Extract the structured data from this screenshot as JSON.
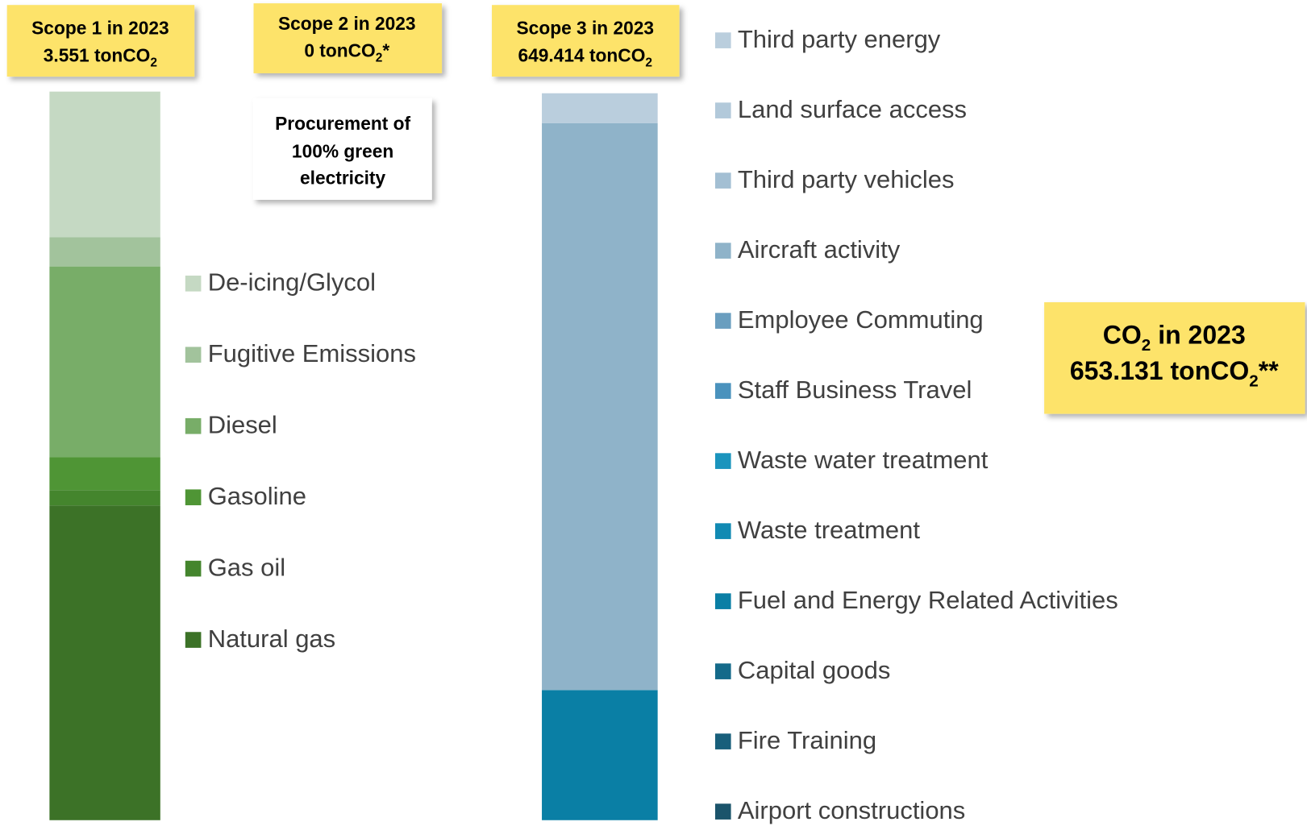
{
  "scope1_box": {
    "line1": "Scope 1  in 2023",
    "line2": "3.551 tonCO",
    "line2_sub": "2"
  },
  "scope2_box": {
    "line1": "Scope 2  in 2023",
    "line2": "0 tonCO",
    "line2_sub": "2",
    "line2_suffix": "*"
  },
  "scope3_box": {
    "line1": "Scope 3  in 2023",
    "line2": "649.414 tonCO",
    "line2_sub": "2"
  },
  "scope2_note": [
    "Procurement of",
    "100% green",
    "electricity"
  ],
  "total_box": {
    "line1": "CO",
    "line1_sub": "2",
    "line1_suffix": " in 2023",
    "line2": "653.131 tonCO",
    "line2_sub": "2",
    "line2_suffix": "**"
  },
  "chart_data": [
    {
      "type": "stacked_bar",
      "series": [
        {
          "name": "De-icing/Glycol",
          "color": "#c5d9c3",
          "values": [
            20.0
          ]
        },
        {
          "name": "Fugitive Emissions",
          "color": "#a2c39c",
          "values": [
            4.0
          ]
        },
        {
          "name": "Diesel",
          "color": "#78ad68",
          "values": [
            26.2
          ]
        },
        {
          "name": "Gasoline",
          "color": "#4f9535",
          "values": [
            4.5
          ]
        },
        {
          "name": "Gas oil",
          "color": "#44852d",
          "values": [
            2.1
          ]
        },
        {
          "name": "Natural gas",
          "color": "#3c7227",
          "values": [
            43.2
          ]
        }
      ]
    },
    {
      "type": "stacked_bar",
      "series": [
        {
          "name": "Third party energy",
          "color": "#bacedd",
          "values": [
            4.1
          ]
        },
        {
          "name": "Land surface access",
          "color": "#b2c9da",
          "values": [
            0
          ]
        },
        {
          "name": "Third party vehicles",
          "color": "#a3bfd3",
          "values": [
            0
          ]
        },
        {
          "name": "Aircraft activity",
          "color": "#8fb3c9",
          "values": [
            78.0
          ]
        },
        {
          "name": "Employee Commuting",
          "color": "#6a9ebf",
          "values": [
            0
          ]
        },
        {
          "name": "Staff Business Travel",
          "color": "#4a92bd",
          "values": [
            0
          ]
        },
        {
          "name": "Waste water treatment",
          "color": "#1a94bd",
          "values": [
            0
          ]
        },
        {
          "name": "Waste treatment",
          "color": "#118ab3",
          "values": [
            0
          ]
        },
        {
          "name": "Fuel and Energy Related Activities",
          "color": "#0a7fa5",
          "values": [
            17.9
          ]
        },
        {
          "name": "Capital goods",
          "color": "#146a8a",
          "values": [
            0
          ]
        },
        {
          "name": "Fire Training",
          "color": "#185f7b",
          "values": [
            0
          ]
        },
        {
          "name": "Airport constructions",
          "color": "#1b546b",
          "values": [
            0
          ]
        }
      ]
    }
  ]
}
